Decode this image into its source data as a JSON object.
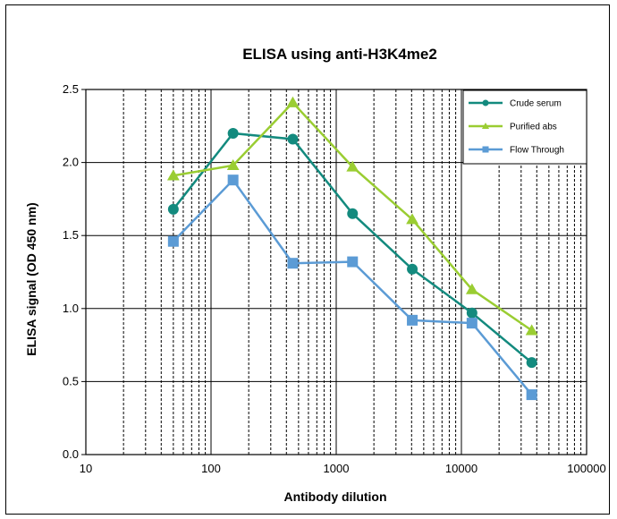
{
  "chart_data": {
    "type": "line",
    "title": "ELISA using anti-H3K4me2",
    "xlabel": "Antibody dilution",
    "ylabel": "ELISA signal (OD 450 nm)",
    "x_scale": "log",
    "xlim": [
      10,
      100000
    ],
    "ylim": [
      0,
      2.5
    ],
    "x_ticks": [
      "10",
      "100",
      "1000",
      "10000",
      "100000"
    ],
    "y_ticks": [
      "0.0",
      "0.5",
      "1.0",
      "1.5",
      "2.0",
      "2.5"
    ],
    "grid": true,
    "legend_position": "top-right",
    "x": [
      50,
      150,
      450,
      1350,
      4050,
      12150,
      36450
    ],
    "series": [
      {
        "name": "Crude serum",
        "color": "#138a7e",
        "marker": "circle",
        "values": [
          1.68,
          2.2,
          2.16,
          1.65,
          1.27,
          0.97,
          0.63
        ]
      },
      {
        "name": "Purified abs",
        "color": "#9acd32",
        "marker": "triangle",
        "values": [
          1.91,
          1.98,
          2.41,
          1.97,
          1.61,
          1.13,
          0.85
        ]
      },
      {
        "name": "Flow Through",
        "color": "#5b9bd5",
        "marker": "square",
        "values": [
          1.46,
          1.88,
          1.31,
          1.32,
          0.92,
          0.9,
          0.41
        ]
      }
    ]
  }
}
